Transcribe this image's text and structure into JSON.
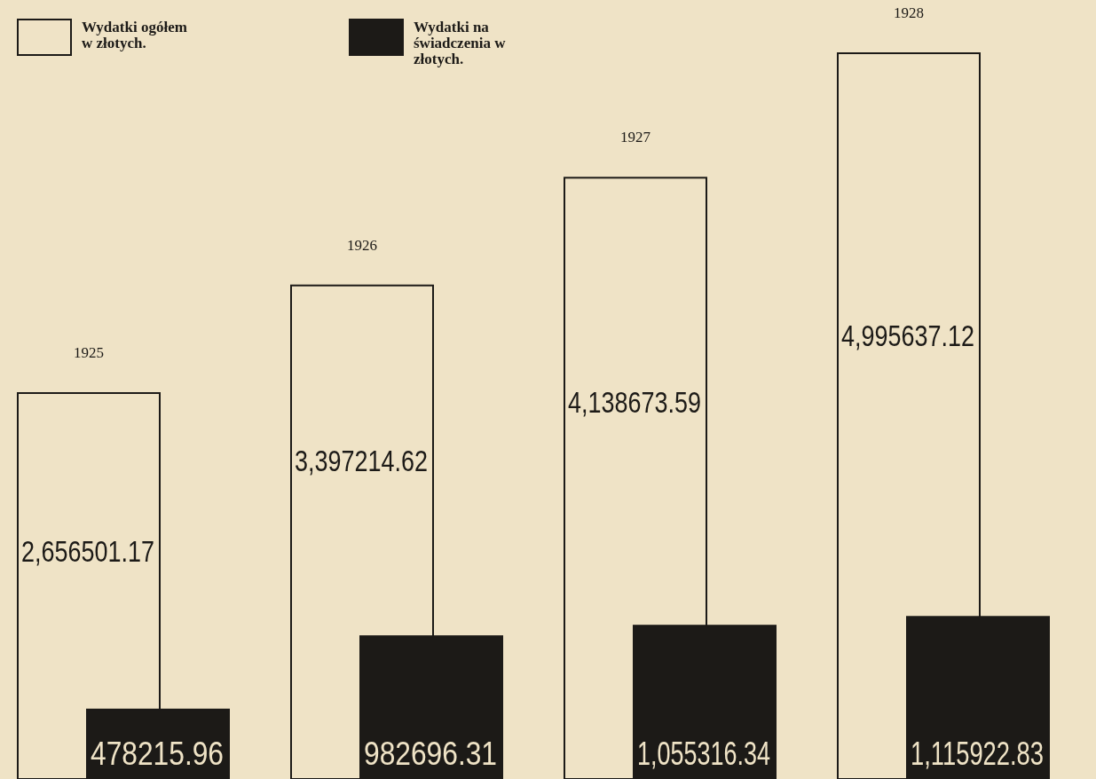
{
  "chart_data": {
    "type": "bar",
    "categories": [
      "1925",
      "1926",
      "1927",
      "1928"
    ],
    "legend": "top left",
    "series": [
      {
        "name": "Wydatki ogółem w złotych.",
        "color": "#efe3c6",
        "values": [
          2656501.17,
          3397214.62,
          4138673.59,
          4995637.12
        ],
        "value_labels": [
          "2,656501.17",
          "3,397214.62",
          "4,138673.59",
          "4,995637.12"
        ]
      },
      {
        "name": "Wydatki na świadczenia w złotych.",
        "color": "#1c1a17",
        "values": [
          478215.96,
          982696.31,
          1055316.34,
          1115922.83
        ],
        "value_labels": [
          "478215.96",
          "982696.31",
          "1,055316.34",
          "1,115922.83"
        ]
      }
    ]
  }
}
